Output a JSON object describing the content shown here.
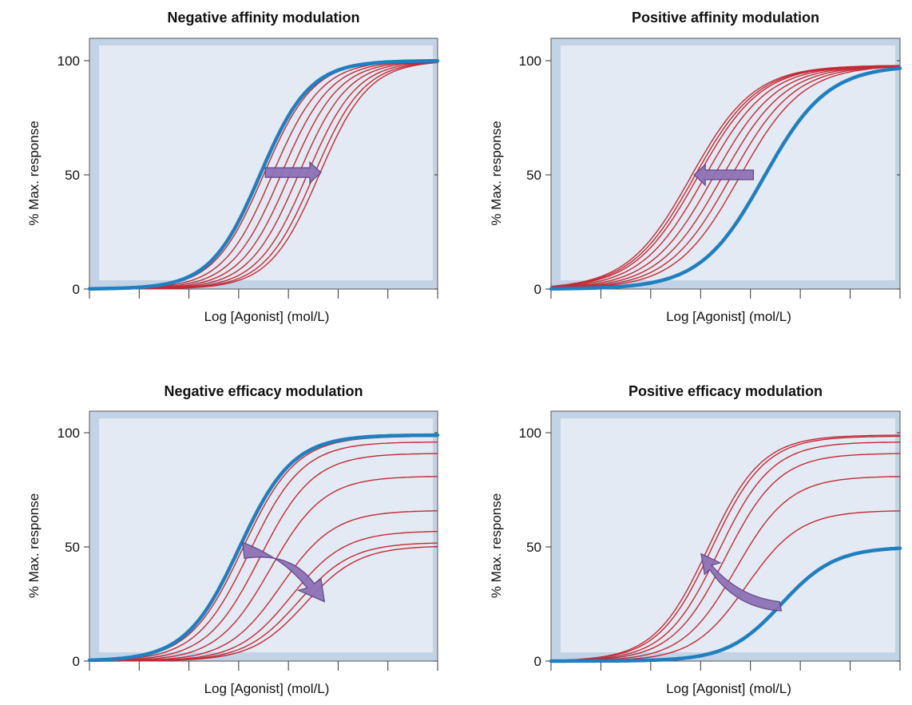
{
  "chart_data": [
    {
      "type": "line",
      "title": "Negative affinity modulation",
      "xlabel": "Log [Agonist] (mol/L)",
      "ylabel": "% Max. response",
      "yticks": [
        0,
        50,
        100
      ],
      "ylim": [
        0,
        100
      ],
      "xlim": [
        0,
        1
      ],
      "arrow": "right",
      "reference_curve": {
        "color": "#1f7fbf",
        "ec50": 0.49,
        "emax": 100,
        "slope": 14
      },
      "series": [
        {
          "color": "#c22a35",
          "ec50": 0.5,
          "emax": 100,
          "slope": 14
        },
        {
          "color": "#c22a35",
          "ec50": 0.525,
          "emax": 100,
          "slope": 14
        },
        {
          "color": "#c22a35",
          "ec50": 0.55,
          "emax": 100,
          "slope": 14
        },
        {
          "color": "#c22a35",
          "ec50": 0.575,
          "emax": 100,
          "slope": 14
        },
        {
          "color": "#c22a35",
          "ec50": 0.6,
          "emax": 100,
          "slope": 14
        },
        {
          "color": "#c22a35",
          "ec50": 0.625,
          "emax": 100,
          "slope": 14
        },
        {
          "color": "#c22a35",
          "ec50": 0.645,
          "emax": 100,
          "slope": 14
        },
        {
          "color": "#c22a35",
          "ec50": 0.66,
          "emax": 100,
          "slope": 14
        }
      ]
    },
    {
      "type": "line",
      "title": "Positive affinity modulation",
      "xlabel": "Log [Agonist] (mol/L)",
      "ylabel": "% Max. response",
      "yticks": [
        0,
        50,
        100
      ],
      "ylim": [
        0,
        100
      ],
      "xlim": [
        0,
        1
      ],
      "arrow": "left",
      "reference_curve": {
        "color": "#1f7fbf",
        "ec50": 0.61,
        "emax": 98,
        "slope": 11
      },
      "series": [
        {
          "color": "#c22a35",
          "ec50": 0.4,
          "emax": 98,
          "slope": 11
        },
        {
          "color": "#c22a35",
          "ec50": 0.41,
          "emax": 98,
          "slope": 11
        },
        {
          "color": "#c22a35",
          "ec50": 0.42,
          "emax": 98,
          "slope": 11
        },
        {
          "color": "#c22a35",
          "ec50": 0.44,
          "emax": 98,
          "slope": 11
        },
        {
          "color": "#c22a35",
          "ec50": 0.465,
          "emax": 98,
          "slope": 11
        },
        {
          "color": "#c22a35",
          "ec50": 0.49,
          "emax": 98,
          "slope": 11
        },
        {
          "color": "#c22a35",
          "ec50": 0.515,
          "emax": 98,
          "slope": 11
        },
        {
          "color": "#c22a35",
          "ec50": 0.54,
          "emax": 98,
          "slope": 11
        }
      ]
    },
    {
      "type": "line",
      "title": "Negative efficacy modulation",
      "xlabel": "Log [Agonist] (mol/L)",
      "ylabel": "% Max. response",
      "yticks": [
        0,
        50,
        100
      ],
      "ylim": [
        0,
        100
      ],
      "xlim": [
        0,
        1
      ],
      "arrow": "down-right",
      "reference_curve": {
        "color": "#1f7fbf",
        "ec50": 0.43,
        "emax": 99,
        "slope": 13
      },
      "series": [
        {
          "color": "#c22a35",
          "ec50": 0.44,
          "emax": 98.5,
          "slope": 13
        },
        {
          "color": "#c22a35",
          "ec50": 0.46,
          "emax": 96,
          "slope": 13
        },
        {
          "color": "#c22a35",
          "ec50": 0.49,
          "emax": 91,
          "slope": 13
        },
        {
          "color": "#c22a35",
          "ec50": 0.52,
          "emax": 81,
          "slope": 13
        },
        {
          "color": "#c22a35",
          "ec50": 0.55,
          "emax": 66,
          "slope": 13
        },
        {
          "color": "#c22a35",
          "ec50": 0.58,
          "emax": 57,
          "slope": 13
        },
        {
          "color": "#c22a35",
          "ec50": 0.6,
          "emax": 52,
          "slope": 13
        },
        {
          "color": "#c22a35",
          "ec50": 0.62,
          "emax": 50.5,
          "slope": 13
        }
      ]
    },
    {
      "type": "line",
      "title": "Positive efficacy modulation",
      "xlabel": "Log [Agonist] (mol/L)",
      "ylabel": "% Max. response",
      "yticks": [
        0,
        50,
        100
      ],
      "ylim": [
        0,
        100
      ],
      "xlim": [
        0,
        1
      ],
      "arrow": "up-left",
      "reference_curve": {
        "color": "#1f7fbf",
        "ec50": 0.66,
        "emax": 50,
        "slope": 13
      },
      "series": [
        {
          "color": "#c22a35",
          "ec50": 0.45,
          "emax": 99,
          "slope": 13
        },
        {
          "color": "#c22a35",
          "ec50": 0.46,
          "emax": 98.5,
          "slope": 13
        },
        {
          "color": "#c22a35",
          "ec50": 0.48,
          "emax": 96,
          "slope": 13
        },
        {
          "color": "#c22a35",
          "ec50": 0.5,
          "emax": 91,
          "slope": 13
        },
        {
          "color": "#c22a35",
          "ec50": 0.53,
          "emax": 81,
          "slope": 13
        },
        {
          "color": "#c22a35",
          "ec50": 0.56,
          "emax": 66,
          "slope": 13
        }
      ]
    }
  ]
}
